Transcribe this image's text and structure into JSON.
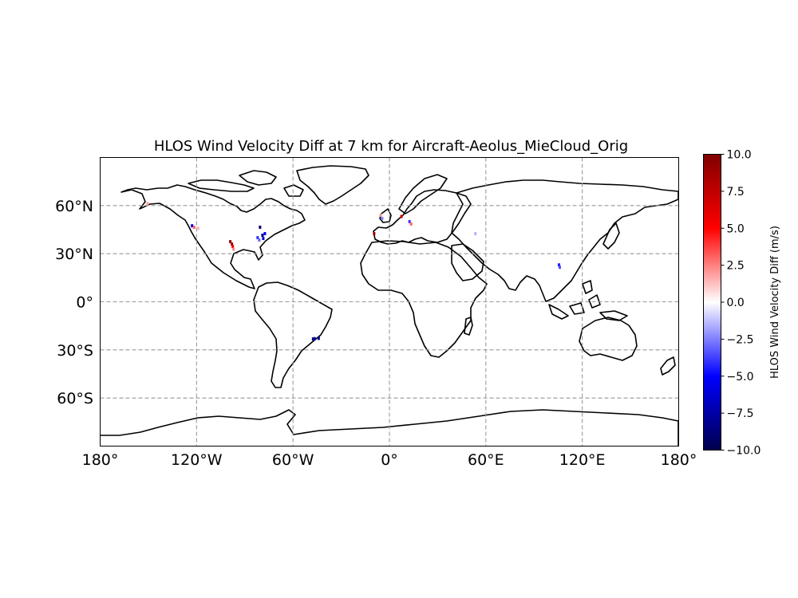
{
  "chart_data": {
    "type": "heatmap",
    "title": "HLOS Wind Velocity Diff at 7 km for Aircraft-Aeolus_MieCloud_Orig",
    "projection": "PlateCarree",
    "xlim": [
      -180,
      180
    ],
    "ylim": [
      -90,
      90
    ],
    "grid": true,
    "x_ticks": [
      {
        "lon": -180,
        "label": "180°"
      },
      {
        "lon": -120,
        "label": "120°W"
      },
      {
        "lon": -60,
        "label": "60°W"
      },
      {
        "lon": 0,
        "label": "0°"
      },
      {
        "lon": 60,
        "label": "60°E"
      },
      {
        "lon": 120,
        "label": "120°E"
      },
      {
        "lon": 180,
        "label": "180°"
      }
    ],
    "y_ticks": [
      {
        "lat": 60,
        "label": "60°N"
      },
      {
        "lat": 30,
        "label": "30°N"
      },
      {
        "lat": 0,
        "label": "0°"
      },
      {
        "lat": -30,
        "label": "30°S"
      },
      {
        "lat": -60,
        "label": "60°S"
      }
    ],
    "colorbar": {
      "label": "HLOS Wind Velocity Diff (m/s)",
      "cmap": "seismic",
      "range": [
        -10,
        10
      ],
      "ticks": [
        "10.0",
        "7.5",
        "5.0",
        "2.5",
        "0.0",
        "−2.5",
        "−5.0",
        "−7.5",
        "−10.0"
      ],
      "colors": [
        "#00004c",
        "#0000ff",
        "#ffffff",
        "#ff0000",
        "#800000"
      ]
    },
    "points": [
      {
        "lon": -150.5,
        "lat": 61.2,
        "value": 2.0
      },
      {
        "lon": -122.8,
        "lat": 47.4,
        "value": -6.0
      },
      {
        "lon": -121.5,
        "lat": 46.5,
        "value": 3.0
      },
      {
        "lon": -119.0,
        "lat": 45.8,
        "value": 1.5
      },
      {
        "lon": -99.0,
        "lat": 37.5,
        "value": 9.5
      },
      {
        "lon": -98.0,
        "lat": 36.0,
        "value": 8.5
      },
      {
        "lon": -97.5,
        "lat": 34.5,
        "value": 6.0
      },
      {
        "lon": -97.0,
        "lat": 32.8,
        "value": 2.5
      },
      {
        "lon": -80.5,
        "lat": 46.5,
        "value": -9.0
      },
      {
        "lon": -82.0,
        "lat": 40.0,
        "value": -4.0
      },
      {
        "lon": -81.0,
        "lat": 38.5,
        "value": -3.0
      },
      {
        "lon": -79.0,
        "lat": 41.5,
        "value": -8.5
      },
      {
        "lon": -78.5,
        "lat": 39.5,
        "value": -6.5
      },
      {
        "lon": -77.5,
        "lat": 42.5,
        "value": -5.0
      },
      {
        "lon": -47.5,
        "lat": -23.2,
        "value": -9.0
      },
      {
        "lon": -46.5,
        "lat": -23.0,
        "value": -7.5
      },
      {
        "lon": -44.0,
        "lat": -22.8,
        "value": -8.0
      },
      {
        "lon": -9.5,
        "lat": 42.5,
        "value": 9.0
      },
      {
        "lon": -5.5,
        "lat": 54.0,
        "value": 2.0
      },
      {
        "lon": -4.5,
        "lat": 52.0,
        "value": -2.5
      },
      {
        "lon": 7.5,
        "lat": 53.2,
        "value": 7.0
      },
      {
        "lon": 12.5,
        "lat": 50.0,
        "value": -4.0
      },
      {
        "lon": 13.5,
        "lat": 48.5,
        "value": 3.0
      },
      {
        "lon": 53.5,
        "lat": 42.5,
        "value": -1.5
      },
      {
        "lon": 105.5,
        "lat": 23.0,
        "value": -4.5
      },
      {
        "lon": 106.0,
        "lat": 21.5,
        "value": -3.5
      }
    ]
  }
}
